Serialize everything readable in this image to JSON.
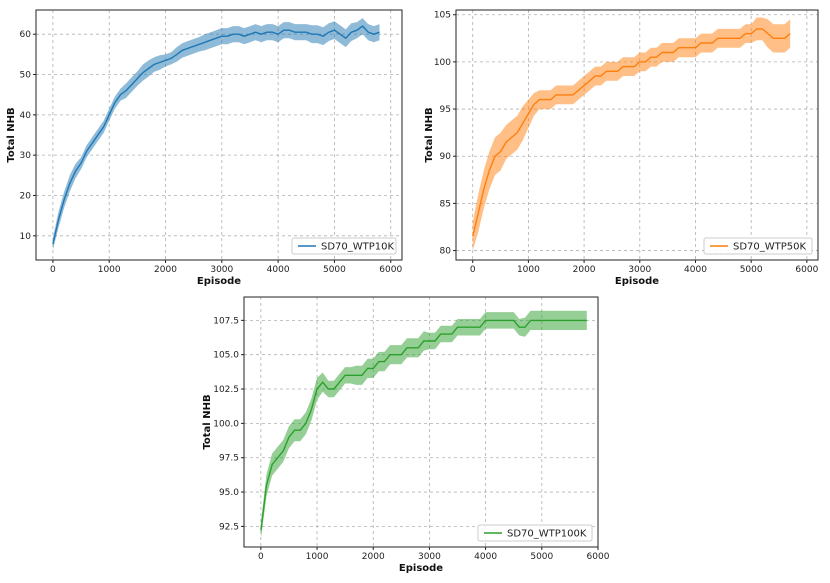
{
  "chart_data": [
    {
      "type": "line",
      "title": "",
      "xlabel": "Episode",
      "ylabel": "Total NHB",
      "xlim": [
        -300,
        6200
      ],
      "ylim": [
        4,
        66
      ],
      "xticks": [
        0,
        1000,
        2000,
        3000,
        4000,
        5000,
        6000
      ],
      "yticks": [
        10,
        20,
        30,
        40,
        50,
        60
      ],
      "ytick_labels": [
        "10",
        "20",
        "30",
        "40",
        "50",
        "60"
      ],
      "grid": true,
      "legend_position": "bottom-right",
      "color": "#1f77b4",
      "series": [
        {
          "name": "SD70_WTP10K",
          "x": [
            0,
            100,
            200,
            300,
            400,
            500,
            600,
            700,
            800,
            900,
            1000,
            1100,
            1200,
            1300,
            1400,
            1500,
            1600,
            1700,
            1800,
            1900,
            2000,
            2100,
            2200,
            2300,
            2400,
            2500,
            2600,
            2700,
            2800,
            2900,
            3000,
            3100,
            3200,
            3300,
            3400,
            3500,
            3600,
            3700,
            3800,
            3900,
            4000,
            4100,
            4200,
            4300,
            4400,
            4500,
            4600,
            4700,
            4800,
            4900,
            5000,
            5100,
            5200,
            5300,
            5400,
            5500,
            5600,
            5700,
            5800
          ],
          "values": [
            8,
            14,
            19,
            23,
            26,
            28,
            31,
            33,
            35,
            37,
            40,
            43,
            45,
            46,
            47.5,
            49,
            50.5,
            51.5,
            52.5,
            53,
            53.5,
            54,
            55,
            56,
            56.5,
            57,
            57.5,
            58,
            58.5,
            59,
            59.5,
            59.5,
            60,
            60,
            59.5,
            60,
            60.5,
            60,
            60.5,
            60.5,
            60,
            61,
            61,
            60.5,
            60.5,
            60.5,
            60,
            60,
            59.5,
            60.5,
            61,
            60,
            59,
            60.5,
            61,
            62,
            60.5,
            60,
            60.5
          ],
          "band": [
            1.5,
            2,
            2,
            2,
            1.8,
            1.5,
            1.5,
            1.5,
            1.5,
            1.5,
            1.5,
            1.5,
            1.5,
            1.8,
            1.8,
            1.8,
            2,
            2,
            1.8,
            1.8,
            1.5,
            1.5,
            1.8,
            1.8,
            1.8,
            1.8,
            1.8,
            2,
            2,
            2,
            2,
            2,
            2,
            2,
            2,
            2,
            2,
            2,
            2,
            2,
            2,
            2,
            2,
            2,
            2,
            2,
            2.2,
            2.2,
            2.2,
            2.2,
            2.2,
            2.2,
            2.2,
            2.2,
            2,
            2,
            2,
            2,
            2
          ]
        }
      ]
    },
    {
      "type": "line",
      "title": "",
      "xlabel": "Episode",
      "ylabel": "Total NHB",
      "xlim": [
        -300,
        6200
      ],
      "ylim": [
        79,
        105.5
      ],
      "xticks": [
        0,
        1000,
        2000,
        3000,
        4000,
        5000,
        6000
      ],
      "yticks": [
        80,
        85,
        90,
        95,
        100,
        105
      ],
      "ytick_labels": [
        "80",
        "85",
        "90",
        "95",
        "100",
        "105"
      ],
      "grid": true,
      "legend_position": "bottom-right",
      "color": "#ff7f0e",
      "series": [
        {
          "name": "SD70_WTP50K",
          "x": [
            0,
            100,
            200,
            300,
            400,
            500,
            600,
            700,
            800,
            900,
            1000,
            1100,
            1200,
            1300,
            1400,
            1500,
            1600,
            1700,
            1800,
            1900,
            2000,
            2100,
            2200,
            2300,
            2400,
            2500,
            2600,
            2700,
            2800,
            2900,
            3000,
            3100,
            3200,
            3300,
            3400,
            3500,
            3600,
            3700,
            3800,
            3900,
            4000,
            4100,
            4200,
            4300,
            4400,
            4500,
            4600,
            4700,
            4800,
            4900,
            5000,
            5100,
            5200,
            5300,
            5400,
            5500,
            5600,
            5700
          ],
          "values": [
            81.5,
            84,
            86.5,
            88.5,
            90,
            90.5,
            91.5,
            92,
            92.5,
            93.5,
            94.5,
            95.5,
            96,
            96,
            96,
            96.5,
            96.5,
            96.5,
            96.5,
            97,
            97.5,
            98,
            98.5,
            98.5,
            99,
            99,
            99,
            99.5,
            99.5,
            99.5,
            100,
            100,
            100.5,
            100.5,
            101,
            101,
            101,
            101.5,
            101.5,
            101.5,
            101.5,
            102,
            102,
            102,
            102.5,
            102.5,
            102.5,
            102.5,
            102.5,
            103,
            103,
            103.5,
            103.5,
            103,
            102.5,
            102.5,
            102.5,
            103
          ],
          "band": [
            1.5,
            2,
            2,
            2,
            2,
            2,
            1.8,
            1.8,
            1.8,
            1.8,
            1.5,
            1.2,
            1,
            1,
            1,
            1,
            1,
            1,
            1,
            1,
            1,
            1,
            1,
            1,
            1,
            1,
            1,
            1,
            1,
            1,
            1,
            1,
            1,
            1,
            1,
            1,
            1,
            1,
            1,
            1,
            1,
            1,
            1,
            1,
            1,
            1,
            1,
            1,
            1,
            1,
            1,
            1.2,
            1.2,
            1.5,
            1.5,
            1.5,
            1.5,
            1.5
          ]
        }
      ]
    },
    {
      "type": "line",
      "title": "",
      "xlabel": "Episode",
      "ylabel": "Total NHB",
      "xlim": [
        -300,
        6000
      ],
      "ylim": [
        91,
        109.2
      ],
      "xticks": [
        0,
        1000,
        2000,
        3000,
        4000,
        5000,
        6000
      ],
      "yticks": [
        92.5,
        95.0,
        97.5,
        100.0,
        102.5,
        105.0,
        107.5
      ],
      "ytick_labels": [
        "92.5",
        "95.0",
        "97.5",
        "100.0",
        "102.5",
        "105.0",
        "107.5"
      ],
      "grid": true,
      "legend_position": "bottom-right",
      "color": "#2ca02c",
      "series": [
        {
          "name": "SD70_WTP100K",
          "x": [
            0,
            100,
            200,
            300,
            400,
            500,
            600,
            700,
            800,
            900,
            1000,
            1100,
            1200,
            1300,
            1400,
            1500,
            1600,
            1700,
            1800,
            1900,
            2000,
            2100,
            2200,
            2300,
            2400,
            2500,
            2600,
            2700,
            2800,
            2900,
            3000,
            3100,
            3200,
            3300,
            3400,
            3500,
            3600,
            3700,
            3800,
            3900,
            4000,
            4100,
            4200,
            4300,
            4400,
            4500,
            4600,
            4700,
            4800,
            4900,
            5000,
            5100,
            5200,
            5300,
            5400,
            5500,
            5600,
            5700,
            5800
          ],
          "values": [
            92.2,
            95.5,
            97,
            97.5,
            98,
            99,
            99.5,
            99.5,
            100,
            101,
            102.5,
            103,
            102.5,
            102.5,
            103,
            103.5,
            103.5,
            103.5,
            103.5,
            104,
            104,
            104.5,
            104.5,
            105,
            105,
            105,
            105.5,
            105.5,
            105.5,
            106,
            106,
            106,
            106.5,
            106.5,
            106.5,
            107,
            107,
            107,
            107,
            107,
            107.5,
            107.5,
            107.5,
            107.5,
            107.5,
            107.5,
            107,
            107,
            107.5,
            107.5,
            107.5,
            107.5,
            107.5,
            107.5,
            107.5,
            107.5,
            107.5,
            107.5,
            107.5
          ],
          "band": [
            0.6,
            0.8,
            0.8,
            0.8,
            0.8,
            0.8,
            0.8,
            0.8,
            0.8,
            0.8,
            0.8,
            0.7,
            0.6,
            0.6,
            0.6,
            0.6,
            0.6,
            0.7,
            0.7,
            0.7,
            0.7,
            0.7,
            0.7,
            0.7,
            0.7,
            0.7,
            0.7,
            0.7,
            0.7,
            0.7,
            0.6,
            0.6,
            0.6,
            0.6,
            0.6,
            0.6,
            0.6,
            0.6,
            0.6,
            0.6,
            0.6,
            0.6,
            0.6,
            0.6,
            0.6,
            0.6,
            0.6,
            0.7,
            0.7,
            0.7,
            0.7,
            0.7,
            0.7,
            0.7,
            0.7,
            0.7,
            0.7,
            0.7,
            0.7
          ]
        }
      ]
    }
  ]
}
